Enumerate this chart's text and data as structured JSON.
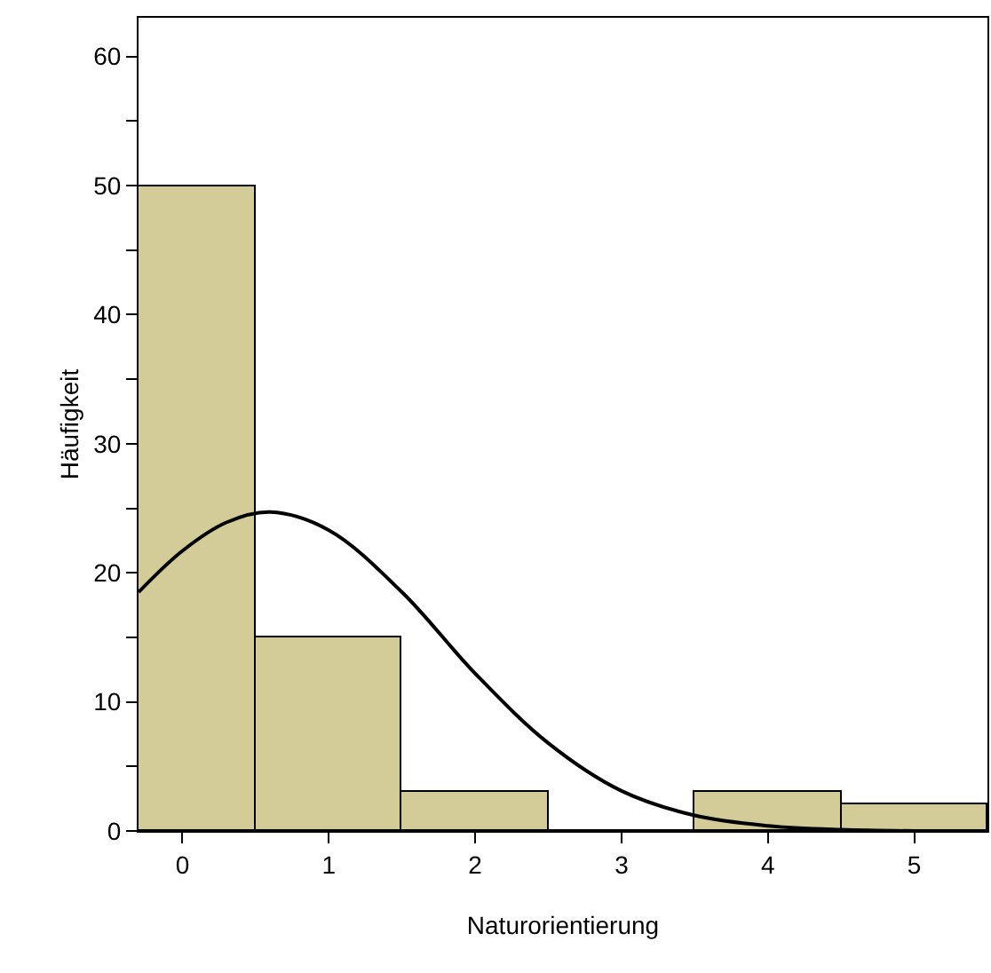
{
  "chart_data": {
    "type": "histogram",
    "xlabel": "Naturorientierung",
    "ylabel": "Häufigkeit",
    "xlim": [
      -0.3,
      5.5
    ],
    "xticks": [
      0,
      1,
      2,
      3,
      4,
      5
    ],
    "ylim": [
      0,
      63
    ],
    "yticks": [
      0,
      {
        "value": 5,
        "label": null
      },
      10,
      {
        "value": 15,
        "label": null
      },
      20,
      {
        "value": 25,
        "label": null
      },
      30,
      {
        "value": 35,
        "label": null
      },
      40,
      {
        "value": 45,
        "label": null
      },
      50,
      {
        "value": 55,
        "label": null
      },
      60
    ],
    "color": "#d3cc98",
    "bins": [
      -0.5,
      0.5,
      1.5,
      2.5,
      3.5,
      4.5,
      5.5
    ],
    "values": [
      50,
      15,
      3,
      0,
      3,
      2
    ],
    "series": [
      {
        "type": "line",
        "color": "#000000",
        "x": [
          -0.3,
          0,
          0.3,
          0.6,
          1.0,
          1.5,
          2.0,
          2.5,
          3.0,
          3.5,
          4.0,
          4.5,
          5.0,
          5.5
        ],
        "values": [
          18.5,
          21.7,
          23.9,
          24.7,
          23.3,
          18.5,
          12.2,
          6.8,
          3.1,
          1.2,
          0.4,
          0.1,
          0,
          0
        ]
      }
    ]
  }
}
